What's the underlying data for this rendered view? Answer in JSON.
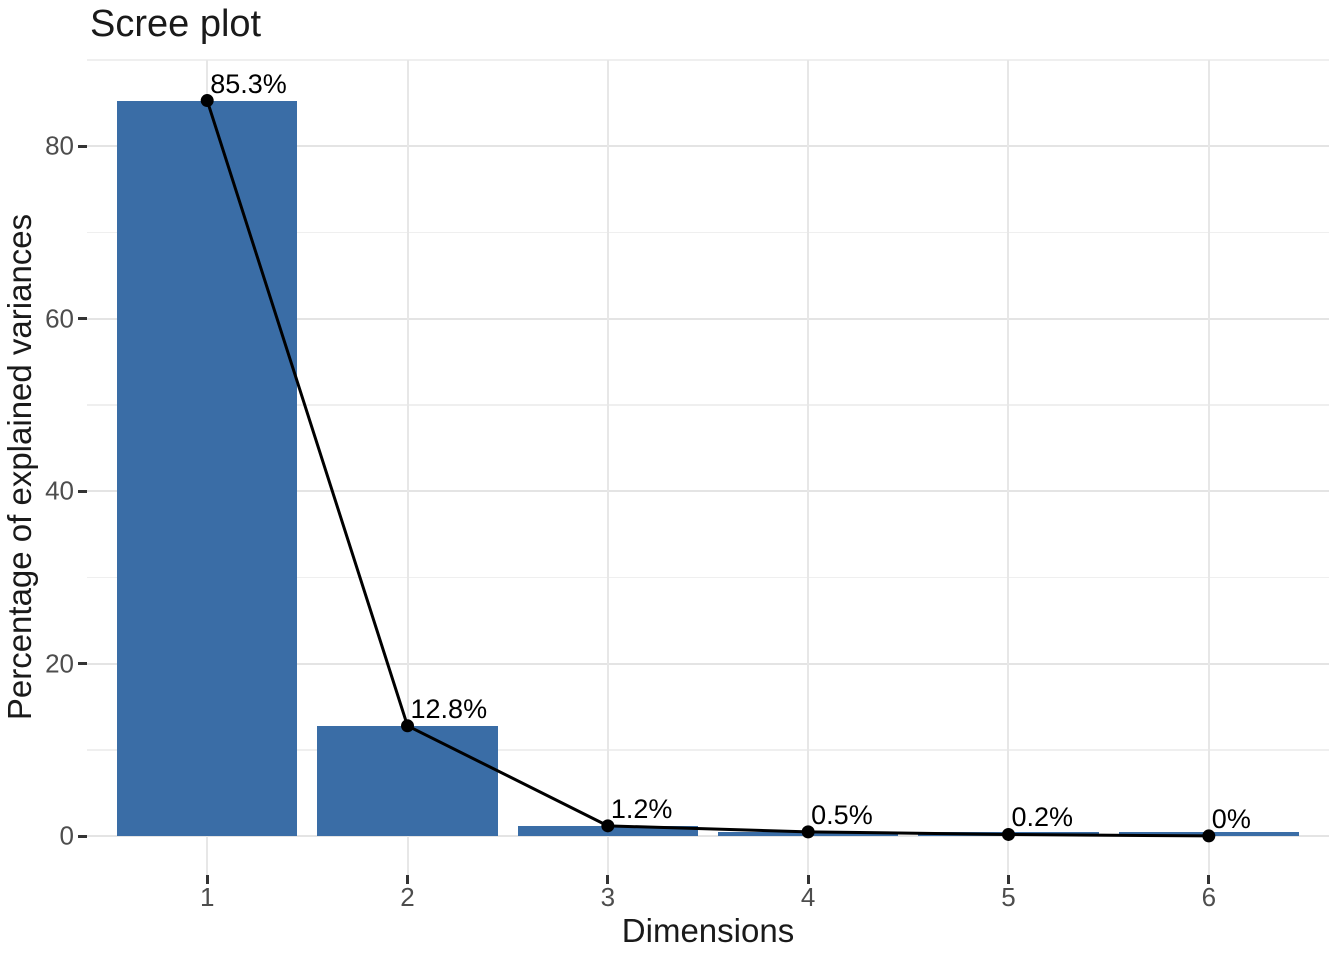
{
  "title": "Scree plot",
  "chart_data": {
    "type": "bar",
    "subtype": "bar+line (scree plot with connected points)",
    "title": "Scree plot",
    "xlabel": "Dimensions",
    "ylabel": "Percentage of explained variances",
    "categories": [
      "1",
      "2",
      "3",
      "4",
      "5",
      "6"
    ],
    "x": [
      1,
      2,
      3,
      4,
      5,
      6
    ],
    "values": [
      85.3,
      12.8,
      1.2,
      0.5,
      0.2,
      0.03
    ],
    "point_labels": [
      "85.3%",
      "12.8%",
      "1.2%",
      "0.5%",
      "0.2%",
      "0%"
    ],
    "y_tick_labels": [
      "0",
      "20",
      "40",
      "60",
      "80"
    ],
    "y_ticks": [
      0,
      20,
      40,
      60,
      80
    ],
    "y_minor_ticks": [
      10,
      30,
      50,
      70,
      90
    ],
    "x_range": [
      0.4,
      6.6
    ],
    "y_range": [
      -4.5,
      90.0
    ],
    "bar_width": 0.9,
    "grid": true,
    "legend": "none",
    "colors": {
      "bar_fill": "#3a6da6",
      "line": "#000000",
      "point": "#000000",
      "grid_major": "#e4e4e4",
      "grid_minor": "#efefef",
      "tick_label": "#4d4d4d",
      "axis_text": "#1a1a1a",
      "background": "#ffffff"
    }
  }
}
